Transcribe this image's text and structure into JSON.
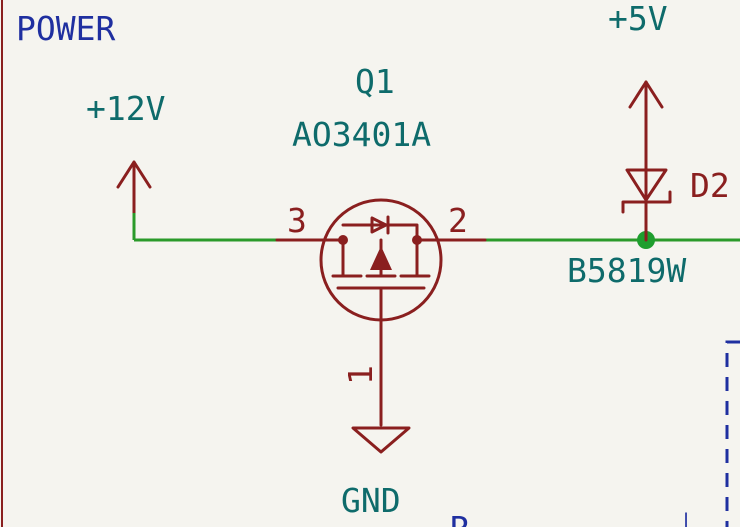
{
  "sheet": {
    "title": "POWER"
  },
  "power_symbols": {
    "v12": "+12V",
    "v5": "+5V",
    "gnd": "GND"
  },
  "q1": {
    "reference": "Q1",
    "value": "AO3401A",
    "pin_gate": "1",
    "pin_source": "2",
    "pin_drain": "3"
  },
  "d2": {
    "reference": "D2",
    "value": "B5819W"
  },
  "colors": {
    "background": "#f5f4ef",
    "component": "#8a1f1f",
    "wire": "#2a9a2a",
    "label": "#0e6b6b",
    "sheet_border": "#1f2fa0",
    "junction": "#1e9e2e"
  },
  "bottom_partial_text": "R"
}
